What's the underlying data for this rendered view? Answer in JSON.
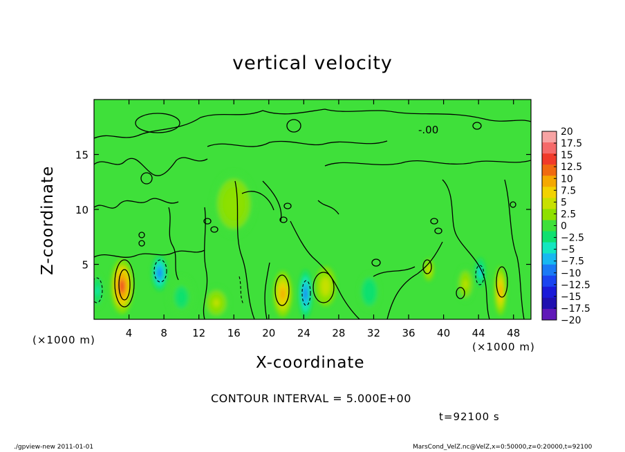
{
  "chart_data": {
    "type": "heatmap",
    "title": "vertical velocity",
    "xlabel": "X-coordinate",
    "ylabel": "Z-coordinate",
    "x_unit_left": "(×1000 m)",
    "x_unit_right": "(×1000 m)",
    "xlim": [
      0,
      50
    ],
    "ylim": [
      0,
      20
    ],
    "x_ticks": [
      4,
      8,
      12,
      16,
      20,
      24,
      28,
      32,
      36,
      40,
      44,
      48
    ],
    "y_ticks": [
      5,
      10,
      15
    ],
    "colorbar": {
      "labels": [
        "20",
        "17.5",
        "15",
        "12.5",
        "10",
        "7.5",
        "5",
        "2.5",
        "0",
        "−2.5",
        "−5",
        "−7.5",
        "−10",
        "−12.5",
        "−15",
        "−17.5",
        "−20"
      ],
      "colors": [
        "#f7a3a3",
        "#f56a6a",
        "#f03a2a",
        "#f06a10",
        "#f5a800",
        "#f2d200",
        "#c8e000",
        "#8ee000",
        "#3fe03a",
        "#10e070",
        "#14e6c0",
        "#18b8f0",
        "#1a7af5",
        "#1a44f0",
        "#1a1ad8",
        "#2010b0",
        "#6018b8"
      ]
    },
    "contour_label": "-.00",
    "blobs": [
      {
        "x": 3.2,
        "z": 3.0,
        "value": 14,
        "rx": 1.3,
        "rz": 2.5
      },
      {
        "x": 7.5,
        "z": 4.2,
        "value": -9,
        "rx": 0.9,
        "rz": 1.6
      },
      {
        "x": 0.4,
        "z": 2.6,
        "value": -5,
        "rx": 0.7,
        "rz": 1.6
      },
      {
        "x": 21.6,
        "z": 2.3,
        "value": 10,
        "rx": 1.1,
        "rz": 2.1
      },
      {
        "x": 24.2,
        "z": 2.3,
        "value": -9,
        "rx": 0.8,
        "rz": 2.2
      },
      {
        "x": 26.5,
        "z": 3.0,
        "value": 6,
        "rx": 1.2,
        "rz": 1.8
      },
      {
        "x": 31.5,
        "z": 2.5,
        "value": -3,
        "rx": 1.2,
        "rz": 1.7
      },
      {
        "x": 38.3,
        "z": 4.5,
        "value": 6,
        "rx": 0.6,
        "rz": 1.0
      },
      {
        "x": 42.5,
        "z": 3.2,
        "value": 4,
        "rx": 1.0,
        "rz": 1.6
      },
      {
        "x": 44.2,
        "z": 4.3,
        "value": -7,
        "rx": 0.6,
        "rz": 1.3
      },
      {
        "x": 46.5,
        "z": 2.6,
        "value": 10,
        "rx": 0.7,
        "rz": 2.2
      },
      {
        "x": 14.0,
        "z": 1.5,
        "value": 4,
        "rx": 1.5,
        "rz": 1.5
      },
      {
        "x": 10.0,
        "z": 2.0,
        "value": -2,
        "rx": 1.6,
        "rz": 2.0
      },
      {
        "x": 16.0,
        "z": 10.5,
        "value": 3,
        "rx": 2.5,
        "rz": 3.0
      }
    ]
  },
  "contour_interval": "CONTOUR INTERVAL = 5.000E+00",
  "time_label": "t=92100 s",
  "footer_left": "./gpview-new   2011-01-01",
  "footer_right": "MarsCond_VelZ.nc@VelZ,x=0:50000,z=0:20000,t=92100"
}
